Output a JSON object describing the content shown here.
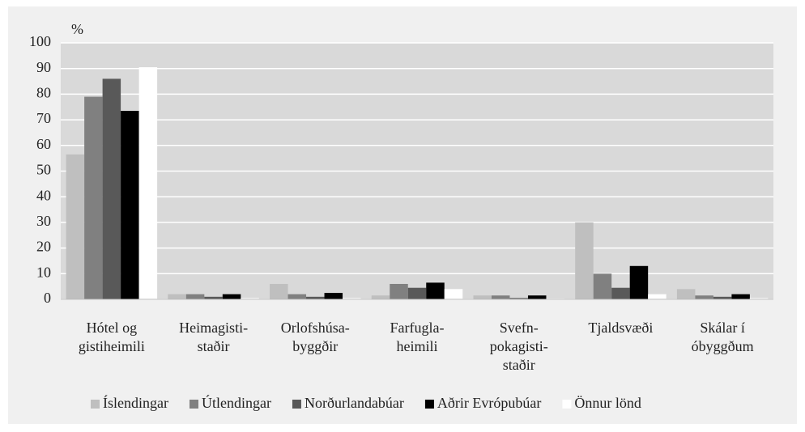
{
  "chart_data": {
    "type": "bar",
    "y_axis_label": "%",
    "categories": [
      [
        "Hótel og",
        "gistiheimili"
      ],
      [
        "Heimagisti-",
        "staðir"
      ],
      [
        "Orlofshúsa-",
        "byggðir"
      ],
      [
        "Farfugla-",
        "heimili"
      ],
      [
        "Svefn-",
        "pokagisti-",
        "staðir"
      ],
      [
        "Tjaldsvæði"
      ],
      [
        "Skálar í",
        "óbyggðum"
      ]
    ],
    "series": [
      {
        "name": "Íslendingar",
        "color": "#bfbfbf",
        "values": [
          56.5,
          2,
          6,
          1.5,
          1.5,
          30,
          4
        ]
      },
      {
        "name": "Útlendingar",
        "color": "#808080",
        "values": [
          79,
          2,
          2,
          6,
          1.5,
          10,
          1.5
        ]
      },
      {
        "name": "Norðurlandabúar",
        "color": "#595959",
        "values": [
          86,
          1,
          1,
          4.5,
          0.5,
          4.5,
          1
        ]
      },
      {
        "name": "Aðrir Evrópubúar",
        "color": "#000000",
        "values": [
          73.5,
          2,
          2.5,
          6.5,
          1.5,
          13,
          2
        ]
      },
      {
        "name": "Önnur lönd",
        "color": "#ffffff",
        "values": [
          90.5,
          0.5,
          0.5,
          4,
          0.3,
          2,
          0.5
        ]
      }
    ],
    "ylim": [
      0,
      100
    ],
    "yticks": [
      0,
      10,
      20,
      30,
      40,
      50,
      60,
      70,
      80,
      90,
      100
    ],
    "grid": true,
    "legend": "bottom"
  }
}
